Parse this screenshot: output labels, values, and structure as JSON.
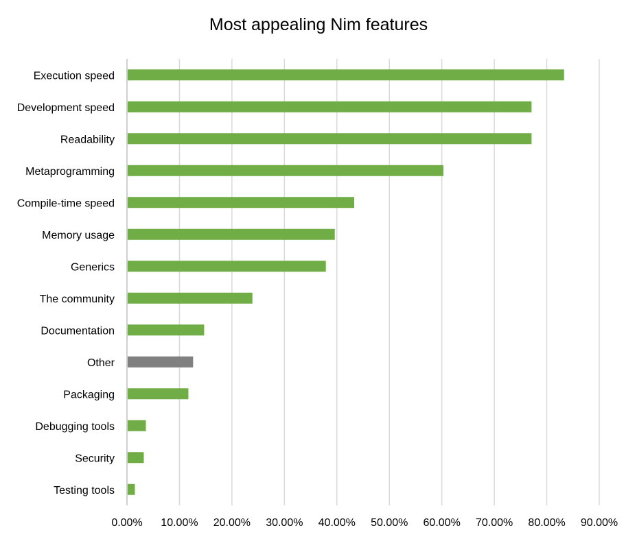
{
  "chart_data": {
    "type": "bar",
    "orientation": "horizontal",
    "title": "Most appealing Nim features",
    "xlabel": "",
    "ylabel": "",
    "xlim": [
      0,
      90
    ],
    "x_ticks": [
      "0.00%",
      "10.00%",
      "20.00%",
      "30.00%",
      "40.00%",
      "50.00%",
      "60.00%",
      "70.00%",
      "80.00%",
      "90.00%"
    ],
    "grid": "vertical",
    "legend": "none",
    "categories": [
      "Execution speed",
      "Development speed",
      "Readability",
      "Metaprogramming",
      "Compile-time speed",
      "Memory usage",
      "Generics",
      "The community",
      "Documentation",
      "Other",
      "Packaging",
      "Debugging tools",
      "Security",
      "Testing tools"
    ],
    "values": [
      83.3,
      77.1,
      77.1,
      60.3,
      43.3,
      39.6,
      37.9,
      23.9,
      14.7,
      12.6,
      11.7,
      3.6,
      3.2,
      1.5
    ],
    "colors": [
      "#70AD47",
      "#70AD47",
      "#70AD47",
      "#70AD47",
      "#70AD47",
      "#70AD47",
      "#70AD47",
      "#70AD47",
      "#70AD47",
      "#808080",
      "#70AD47",
      "#70AD47",
      "#70AD47",
      "#70AD47"
    ],
    "grid_color": "#D9D9D9",
    "axis_color": "#BFBFBF"
  }
}
